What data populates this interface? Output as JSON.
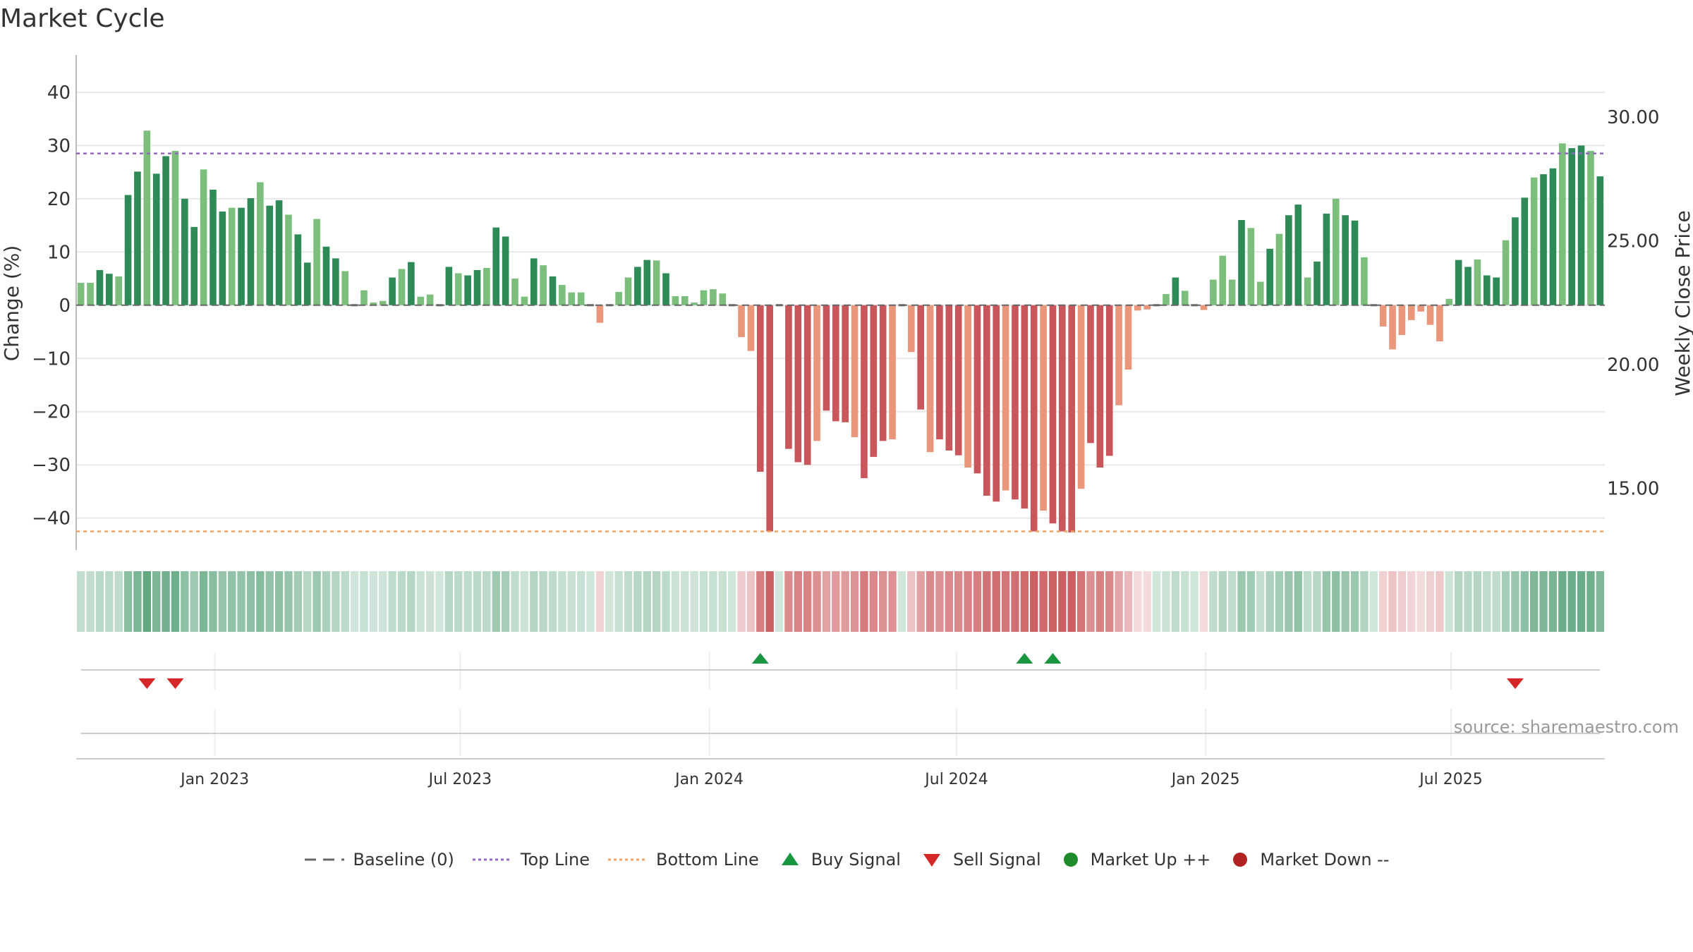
{
  "chart_data": {
    "type": "bar",
    "title": "Market Cycle",
    "ylabel": "Change (%)",
    "y2label": "Weekly Close Price",
    "ylim": [
      -46,
      47
    ],
    "y2lim": [
      12.5,
      32.5
    ],
    "yticks": [
      40,
      30,
      20,
      10,
      0,
      -10,
      -20,
      -30,
      -40
    ],
    "ytick_labels": [
      "40",
      "30",
      "20",
      "10",
      "0",
      "−10",
      "−20",
      "−30",
      "−40"
    ],
    "y2ticks": [
      30,
      25,
      20,
      15
    ],
    "y2tick_labels": [
      "30.00",
      "25.00",
      "20.00",
      "15.00"
    ],
    "xticks": [
      {
        "label": "Jan 2023",
        "index": 14.2
      },
      {
        "label": "Jul 2023",
        "index": 40.2
      },
      {
        "label": "Jan 2024",
        "index": 66.6
      },
      {
        "label": "Jul 2024",
        "index": 92.8
      },
      {
        "label": "Jan 2025",
        "index": 119.2
      },
      {
        "label": "Jul 2025",
        "index": 145.2
      }
    ],
    "top_line": 28.5,
    "bottom_line": -42.5,
    "values": [
      4.2,
      4.2,
      6.6,
      5.9,
      5.4,
      20.7,
      25.1,
      32.8,
      24.7,
      28,
      29,
      20,
      14.7,
      25.5,
      21.7,
      17.6,
      18.3,
      18.3,
      20.1,
      23.1,
      18.7,
      19.7,
      17,
      13.3,
      8,
      16.2,
      11,
      8.8,
      6.4,
      0,
      2.8,
      0.5,
      0.8,
      5.2,
      6.8,
      8.1,
      1.6,
      2,
      0,
      7.2,
      6,
      5.6,
      6.6,
      7,
      14.6,
      12.9,
      5,
      1.6,
      8.8,
      7.5,
      5.4,
      3.8,
      2.4,
      2.4,
      0,
      -3.3,
      0,
      2.5,
      5.2,
      7.2,
      8.5,
      8.4,
      6,
      1.7,
      1.7,
      0.5,
      2.8,
      3,
      2.2,
      0,
      -6,
      -8.6,
      -31.3,
      -42.5,
      0,
      -27,
      -29.5,
      -30,
      -25.5,
      -19.8,
      -21.8,
      -22,
      -24.8,
      -32.5,
      -28.5,
      -25.5,
      -25.2,
      0,
      -8.8,
      -19.6,
      -27.6,
      -25.2,
      -27.3,
      -28.2,
      -30.5,
      -31.6,
      -35.8,
      -36.9,
      -34.8,
      -36.5,
      -38.2,
      -42.5,
      -38.6,
      -41,
      -42.5,
      -42.7,
      -34.5,
      -25.9,
      -30.5,
      -28.3,
      -18.8,
      -12.1,
      -1,
      -0.8,
      0,
      2.1,
      5.2,
      2.7,
      0,
      -0.9,
      4.8,
      9.3,
      4.8,
      16,
      14.5,
      4.4,
      10.6,
      13.4,
      16.9,
      18.9,
      5.2,
      8.2,
      17.2,
      20,
      16.9,
      15.9,
      9,
      0,
      -4,
      -8.3,
      -5.6,
      -2.8,
      -1.2,
      -3.7,
      -6.8,
      1.2,
      8.5,
      7.2,
      8.6,
      5.6,
      5.2,
      12.2,
      16.5,
      20.2,
      24,
      24.6,
      25.7,
      30.4,
      29.5,
      30,
      29,
      24.2
    ],
    "buy_signals": [
      "index 72",
      "index 100",
      "index 103"
    ],
    "sell_signals": [
      "index 7",
      "index 10",
      "index 152"
    ],
    "colors": {
      "up_strong": "#2e8b57",
      "up_weak": "#7cbf7c",
      "down_strong": "#c9565a",
      "down_weak": "#e9967a",
      "top_line": "#9467bd",
      "bottom_line": "#f4a460",
      "buy": "#1a9641",
      "sell": "#d62728",
      "baseline": "#666666",
      "market_up": "#1e8c2b",
      "market_down": "#b22222"
    }
  },
  "source": "source: sharemaestro.com",
  "legend": {
    "baseline": "Baseline (0)",
    "top_line": "Top Line",
    "bottom_line": "Bottom Line",
    "buy": "Buy Signal",
    "sell": "Sell Signal",
    "market_up": "Market Up ++",
    "market_down": "Market Down --"
  }
}
